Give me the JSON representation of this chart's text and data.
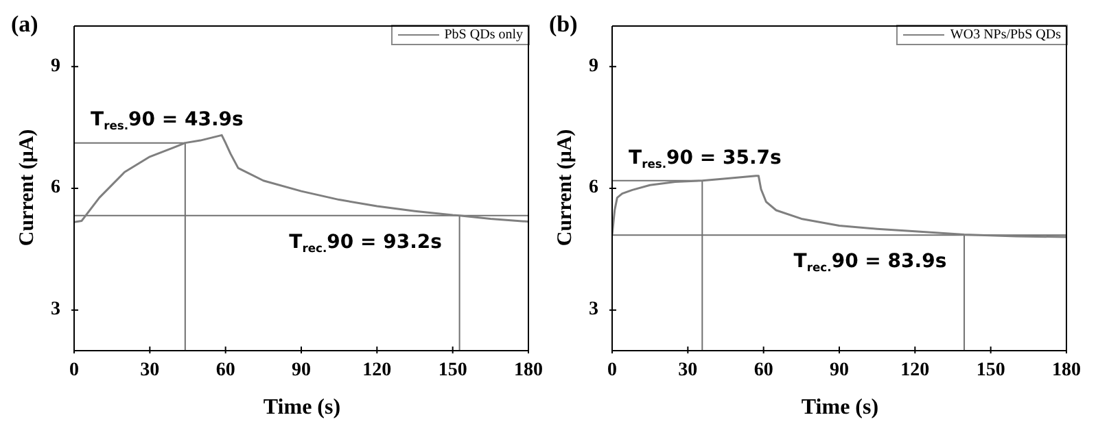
{
  "chart_data": [
    {
      "type": "line",
      "title": "(a)",
      "xlabel": "Time (s)",
      "ylabel": "Current (μA)",
      "xlim": [
        0,
        180
      ],
      "ylim": [
        2,
        10
      ],
      "xticks": [
        0,
        30,
        60,
        90,
        120,
        150,
        180
      ],
      "yticks": [
        3,
        6,
        9
      ],
      "grid": false,
      "legend": "top right",
      "marker": "none",
      "line_style": "solid",
      "series": [
        {
          "name": "PbS QDs only",
          "color": "#7f7f7f",
          "x": [
            0,
            3,
            10,
            20,
            30,
            40,
            44,
            50,
            58.5,
            60,
            62,
            65,
            75,
            90,
            105,
            120,
            135,
            150,
            152.7,
            165,
            180
          ],
          "values": [
            5.17,
            5.2,
            5.77,
            6.4,
            6.78,
            7.02,
            7.12,
            7.18,
            7.31,
            7.12,
            6.85,
            6.5,
            6.19,
            5.93,
            5.72,
            5.56,
            5.44,
            5.34,
            5.33,
            5.25,
            5.18
          ]
        }
      ],
      "ref_lines": [
        {
          "axis": "y",
          "value": 7.12,
          "label": null
        },
        {
          "axis": "x",
          "value": 44,
          "label": null
        },
        {
          "axis": "y",
          "value": 5.33,
          "label": null
        },
        {
          "axis": "x",
          "value": 152.7,
          "label": null
        }
      ],
      "annotations": [
        "T$_{res.}$90 = 43.9s",
        "T$_{rec.}$90 = 93.2s"
      ]
    },
    {
      "type": "line",
      "title": "(b)",
      "xlabel": "Time (s)",
      "ylabel": "Current (μA)",
      "xlim": [
        0,
        180
      ],
      "ylim": [
        2,
        10
      ],
      "xticks": [
        0,
        30,
        60,
        90,
        120,
        150,
        180
      ],
      "yticks": [
        3,
        6,
        9
      ],
      "grid": false,
      "legend": "top right",
      "marker": "none",
      "line_style": "solid",
      "series": [
        {
          "name": "WO3 NPs/PbS QDs",
          "color": "#7f7f7f",
          "x": [
            0,
            1,
            2,
            4,
            8,
            15,
            25,
            35.7,
            45,
            57,
            58,
            59,
            61,
            65,
            75,
            90,
            105,
            120,
            139.5,
            160,
            180
          ],
          "values": [
            4.85,
            5.46,
            5.77,
            5.87,
            5.96,
            6.08,
            6.16,
            6.19,
            6.24,
            6.31,
            6.31,
            5.98,
            5.67,
            5.46,
            5.25,
            5.08,
            5.0,
            4.94,
            4.86,
            4.82,
            4.8
          ]
        }
      ],
      "ref_lines": [
        {
          "axis": "y",
          "value": 6.19,
          "label": null
        },
        {
          "axis": "x",
          "value": 35.7,
          "label": null
        },
        {
          "axis": "y",
          "value": 4.85,
          "label": null
        },
        {
          "axis": "x",
          "value": 139.5,
          "label": null
        }
      ],
      "annotations": [
        "T$_{res.}$90 = 35.7s",
        "T$_{rec.}$90 = 83.9s"
      ]
    }
  ]
}
